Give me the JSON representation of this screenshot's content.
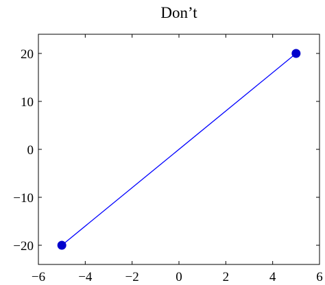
{
  "chart_data": {
    "type": "line",
    "title": "Don’t",
    "x": [
      -5,
      5
    ],
    "values": [
      -20,
      20
    ],
    "color": "#0000ff",
    "marker_color": "#0000cc",
    "xlim": [
      -6,
      6
    ],
    "ylim": [
      -24,
      24
    ],
    "xticks": [
      {
        "value": -6,
        "label": "−6"
      },
      {
        "value": -4,
        "label": "−4"
      },
      {
        "value": -2,
        "label": "−2"
      },
      0,
      2,
      4,
      6
    ],
    "yticks": [
      {
        "value": -20,
        "label": "−20"
      },
      {
        "value": -10,
        "label": "−10"
      },
      0,
      10,
      20
    ],
    "grid": false
  }
}
